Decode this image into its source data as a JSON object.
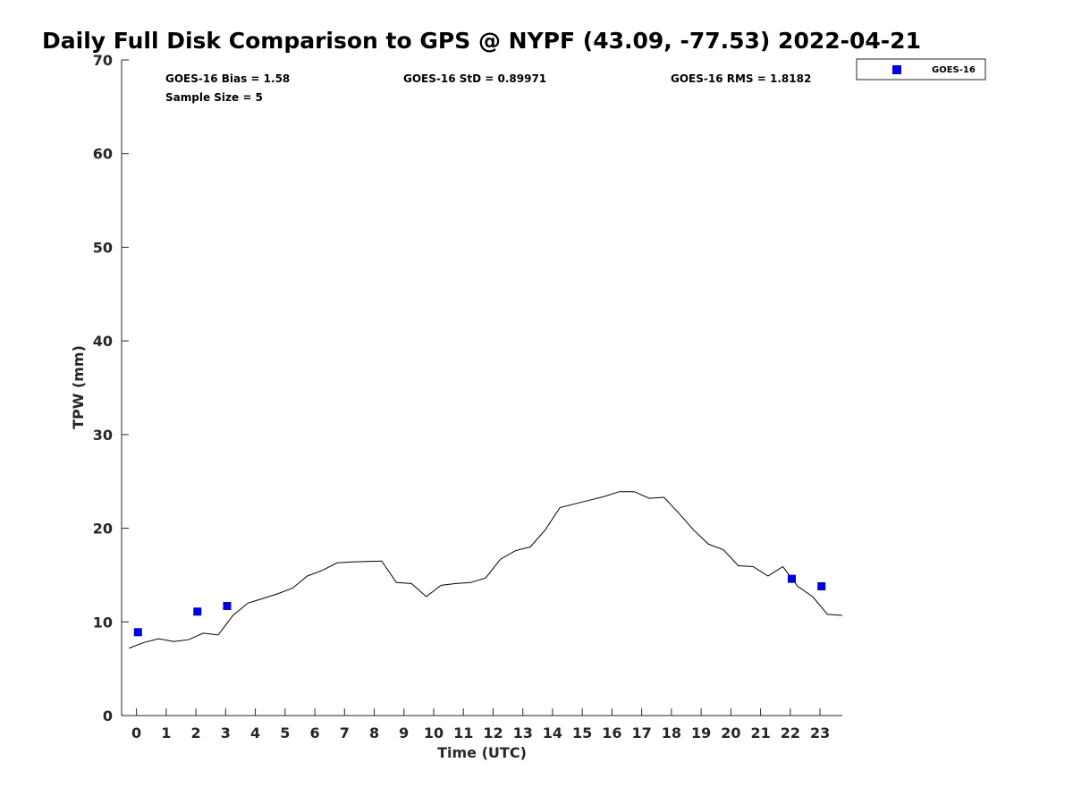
{
  "chart_data": {
    "type": "line",
    "title": "Daily Full Disk Comparison to GPS @ NYPF (43.09, -77.53) 2022-04-21",
    "xlabel": "Time (UTC)",
    "ylabel": "TPW (mm)",
    "xlim": [
      -0.5,
      23.75
    ],
    "ylim": [
      0,
      70
    ],
    "xticks": [
      "0",
      "1",
      "2",
      "3",
      "4",
      "5",
      "6",
      "7",
      "8",
      "9",
      "10",
      "11",
      "12",
      "13",
      "14",
      "15",
      "16",
      "17",
      "18",
      "19",
      "20",
      "21",
      "22",
      "23"
    ],
    "yticks": [
      "0",
      "10",
      "20",
      "30",
      "40",
      "50",
      "60",
      "70"
    ],
    "grid": false,
    "legend_position": "outside-top-right",
    "stats": {
      "bias": "GOES-16 Bias = 1.58",
      "std": "GOES-16 StD = 0.89971",
      "rms": "GOES-16 RMS = 1.8182",
      "sample": "Sample Size = 5"
    },
    "series": [
      {
        "type": "line",
        "color": "#000000",
        "x": [
          -0.25,
          0.25,
          0.75,
          1.25,
          1.75,
          2.25,
          2.75,
          3.25,
          3.75,
          4.25,
          4.75,
          5.25,
          5.75,
          6.25,
          6.75,
          7.25,
          7.75,
          8.25,
          8.75,
          9.25,
          9.75,
          10.25,
          10.75,
          11.25,
          11.75,
          12.25,
          12.75,
          13.25,
          13.75,
          14.25,
          14.75,
          15.25,
          15.75,
          16.25,
          16.75,
          17.25,
          17.75,
          18.25,
          18.75,
          19.25,
          19.75,
          20.25,
          20.75,
          21.25,
          21.75,
          22.25,
          22.75,
          23.25,
          23.75
        ],
        "y": [
          7.2,
          7.8,
          8.2,
          7.9,
          8.1,
          8.8,
          8.6,
          10.7,
          12.0,
          12.5,
          13.0,
          13.6,
          14.9,
          15.5,
          16.3,
          16.4,
          16.45,
          16.5,
          14.2,
          14.1,
          12.7,
          13.9,
          14.1,
          14.2,
          14.7,
          16.7,
          17.6,
          18.0,
          19.8,
          22.2,
          22.6,
          23.0,
          23.4,
          23.9,
          23.9,
          23.2,
          23.3,
          21.6,
          19.8,
          18.3,
          17.7,
          16.0,
          15.9,
          14.9,
          15.9,
          13.8,
          12.7,
          10.8,
          10.7
        ]
      },
      {
        "type": "scatter",
        "name": "GOES-16",
        "color": "#0000dd",
        "x": [
          0.05,
          2.05,
          3.05,
          22.05,
          23.05
        ],
        "y": [
          8.9,
          11.1,
          11.7,
          14.6,
          13.8
        ]
      }
    ]
  }
}
